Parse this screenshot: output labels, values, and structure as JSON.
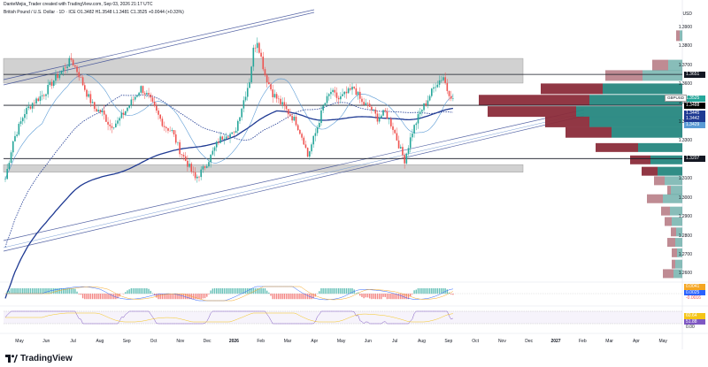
{
  "header": {
    "author_line": "DanteMejia_Trader created with TradingView.com, Sep 03, 2026 21:17 UTC",
    "symbol_line": "British Pound / U.S. Dollar · 1D · ICE  O1.3482  H1.3548  L1.3481  C1.3525  +0.0044 (+0.33%)"
  },
  "currency": "USD",
  "brand": "TradingView",
  "symbol_tag": "GBPUSD",
  "colors": {
    "up": "#26a69a",
    "down": "#ef5350",
    "zone": "#d1d1d1",
    "ma_dark": "#1f3a93",
    "ma_light": "#5b9bd5",
    "vp_up": "#26877f",
    "vp_down": "#8b2c3a"
  },
  "chart_data": {
    "type": "candlestick",
    "x_ticks": [
      "May",
      "Jun",
      "Jul",
      "Aug",
      "Sep",
      "Oct",
      "Nov",
      "Dec",
      "2026",
      "Feb",
      "Mar",
      "Apr",
      "May",
      "Jun",
      "Jul",
      "Aug",
      "Sep",
      "Oct",
      "Nov",
      "Dec",
      "2027",
      "Feb",
      "Mar",
      "Apr",
      "May"
    ],
    "y_ticks": [
      "1.3900",
      "1.3800",
      "1.3700",
      "1.3600",
      "1.3500",
      "1.3400",
      "1.3300",
      "1.3100",
      "1.3000",
      "1.2900",
      "1.2800",
      "1.2700",
      "1.2600"
    ],
    "ylim": [
      1.256,
      1.395
    ],
    "price_labels": [
      {
        "text": "1.3651",
        "value": 1.3651,
        "color": "#131722"
      },
      {
        "text": "1.3525",
        "value": 1.3525,
        "color": "#26a69a"
      },
      {
        "text": "1.3488",
        "value": 1.3488,
        "color": "#000000"
      },
      {
        "text": "1.3445",
        "value": 1.3445,
        "color": "#1f3a93"
      },
      {
        "text": "1.3442",
        "value": 1.3442,
        "color": "#1f3a93"
      },
      {
        "text": "1.3429",
        "value": 1.3429,
        "color": "#5b9bd5"
      },
      {
        "text": "1.3207",
        "value": 1.3207,
        "color": "#131722"
      }
    ],
    "horizontal_lines": [
      1.3651,
      1.3488,
      1.3207
    ],
    "zones": [
      [
        1.3605,
        1.3735
      ],
      [
        1.3135,
        1.3175
      ]
    ],
    "close_path": [
      [
        0,
        1.31
      ],
      [
        4,
        1.33
      ],
      [
        10,
        1.345
      ],
      [
        14,
        1.35
      ],
      [
        20,
        1.355
      ],
      [
        25,
        1.362
      ],
      [
        30,
        1.368
      ],
      [
        34,
        1.373
      ],
      [
        38,
        1.365
      ],
      [
        42,
        1.355
      ],
      [
        46,
        1.347
      ],
      [
        50,
        1.345
      ],
      [
        54,
        1.338
      ],
      [
        58,
        1.34
      ],
      [
        62,
        1.346
      ],
      [
        66,
        1.352
      ],
      [
        70,
        1.358
      ],
      [
        74,
        1.353
      ],
      [
        78,
        1.345
      ],
      [
        82,
        1.338
      ],
      [
        86,
        1.335
      ],
      [
        90,
        1.325
      ],
      [
        94,
        1.318
      ],
      [
        98,
        1.31
      ],
      [
        102,
        1.315
      ],
      [
        106,
        1.322
      ],
      [
        110,
        1.33
      ],
      [
        114,
        1.334
      ],
      [
        118,
        1.333
      ],
      [
        122,
        1.348
      ],
      [
        126,
        1.362
      ],
      [
        128,
        1.378
      ],
      [
        130,
        1.383
      ],
      [
        134,
        1.365
      ],
      [
        138,
        1.355
      ],
      [
        142,
        1.35
      ],
      [
        146,
        1.345
      ],
      [
        150,
        1.34
      ],
      [
        154,
        1.33
      ],
      [
        156,
        1.322
      ],
      [
        160,
        1.334
      ],
      [
        164,
        1.348
      ],
      [
        168,
        1.356
      ],
      [
        172,
        1.352
      ],
      [
        176,
        1.355
      ],
      [
        180,
        1.358
      ],
      [
        184,
        1.35
      ],
      [
        188,
        1.348
      ],
      [
        192,
        1.342
      ],
      [
        196,
        1.345
      ],
      [
        200,
        1.337
      ],
      [
        204,
        1.325
      ],
      [
        206,
        1.32
      ],
      [
        210,
        1.335
      ],
      [
        214,
        1.345
      ],
      [
        218,
        1.352
      ],
      [
        222,
        1.36
      ],
      [
        226,
        1.364
      ],
      [
        228,
        1.357
      ],
      [
        231,
        1.3525
      ]
    ],
    "volume_profile": [
      {
        "price": 1.3855,
        "up": 3,
        "down": 4
      },
      {
        "price": 1.37,
        "up": 16,
        "down": 18
      },
      {
        "price": 1.3645,
        "up": 45,
        "down": 42
      },
      {
        "price": 1.3575,
        "up": 90,
        "down": 70
      },
      {
        "price": 1.3515,
        "up": 105,
        "down": 125
      },
      {
        "price": 1.3455,
        "up": 120,
        "down": 100
      },
      {
        "price": 1.34,
        "up": 105,
        "down": 50
      },
      {
        "price": 1.3345,
        "up": 80,
        "down": 52
      },
      {
        "price": 1.3265,
        "up": 50,
        "down": 48
      },
      {
        "price": 1.32,
        "up": 36,
        "down": 23
      },
      {
        "price": 1.314,
        "up": 28,
        "down": 18
      },
      {
        "price": 1.309,
        "up": 20,
        "down": 12
      },
      {
        "price": 1.304,
        "up": 13,
        "down": 4
      },
      {
        "price": 1.2995,
        "up": 22,
        "down": 18
      },
      {
        "price": 1.293,
        "up": 14,
        "down": 10
      },
      {
        "price": 1.2875,
        "up": 12,
        "down": 8
      },
      {
        "price": 1.282,
        "up": 7,
        "down": 6
      },
      {
        "price": 1.2765,
        "up": 8,
        "down": 9
      },
      {
        "price": 1.271,
        "up": 6,
        "down": 6
      },
      {
        "price": 1.265,
        "up": 8,
        "down": 4
      },
      {
        "price": 1.26,
        "up": 10,
        "down": 12
      }
    ],
    "indicators": {
      "macd_labels": [
        {
          "text": "0.0041",
          "color": "#f5a623"
        },
        {
          "text": "0.0025",
          "color": "#2962ff"
        },
        {
          "text": "-0.0016",
          "color": "#ef5350"
        }
      ],
      "rsi_labels": [
        {
          "text": "60.64",
          "color": "#f5c518"
        },
        {
          "text": "51.88",
          "color": "#7e57c2"
        },
        {
          "text": "0.00",
          "color": "#131722"
        }
      ]
    }
  }
}
